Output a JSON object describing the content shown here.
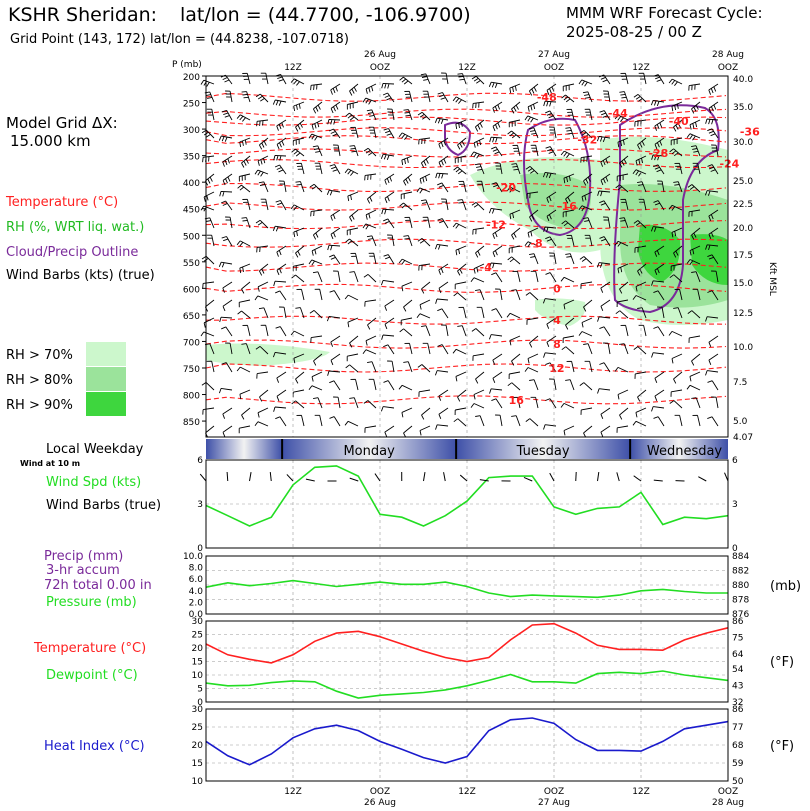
{
  "header": {
    "station": "KSHR Sheridan:",
    "latlon": "lat/lon = (44.7700, -106.9700)",
    "grid_point": "Grid Point (143, 172) lat/lon = (44.8238, -107.0718)",
    "forecast_title": "MMM WRF Forecast Cycle:",
    "forecast_cycle": "2025-08-25 / 00  Z"
  },
  "colors": {
    "temperature": "#ff2020",
    "rh": "#22bb22",
    "cloud": "#7a2a9a",
    "wind_spd": "#22dd22",
    "precip": "#7a2a9a",
    "pressure": "#22dd22",
    "dewpoint": "#22dd22",
    "heat_index": "#1a1acc",
    "rh70": "#ccf7cc",
    "rh80": "#9be39b",
    "rh90": "#3ed63e"
  },
  "legend": {
    "model_grid": "Model Grid ΔX:",
    "model_dx": "15.000 km",
    "temperature": "Temperature (°C)",
    "rh": "RH (%, WRT liq. wat.)",
    "cloud": "Cloud/Precip Outline",
    "wind_barbs": "Wind Barbs (kts) (true)",
    "rh70": "RH > 70%",
    "rh80": "RH > 80%",
    "rh90": "RH > 90%",
    "local_weekday": "Local Weekday",
    "wind_at": "Wind at 10 m",
    "wind_spd": "Wind Spd (kts)",
    "wind_barbs2": "Wind Barbs (true)",
    "precip1": "Precip (mm)",
    "precip2": "3-hr accum",
    "precip3": "72h total 0.00 in",
    "pressure": "Pressure (mb)",
    "temperature2": "Temperature (°C)",
    "dewpoint": "Dewpoint (°C)",
    "heat_index": "Heat Index (°C)",
    "mb_unit": "(mb)",
    "f_unit1": "(°F)",
    "f_unit2": "(°F)",
    "kft_msl": "Kft MSL",
    "p_mb": "P (mb)"
  },
  "days": [
    "Monday",
    "Tuesday",
    "Wednesday"
  ],
  "time_axis": {
    "top_labels": [
      {
        "main": "12Z",
        "sub": ""
      },
      {
        "main": "OOZ",
        "sub": "26 Aug"
      },
      {
        "main": "12Z",
        "sub": ""
      },
      {
        "main": "OOZ",
        "sub": "27 Aug"
      },
      {
        "main": "12Z",
        "sub": ""
      },
      {
        "main": "OOZ",
        "sub": "28 Aug"
      }
    ],
    "bottom_labels": [
      {
        "main": "12Z",
        "sub": ""
      },
      {
        "main": "OOZ",
        "sub": "26 Aug"
      },
      {
        "main": "12Z",
        "sub": ""
      },
      {
        "main": "OOZ",
        "sub": "27 Aug"
      },
      {
        "main": "12Z",
        "sub": ""
      },
      {
        "main": "OOZ",
        "sub": "28 Aug"
      }
    ]
  },
  "chart_data": [
    {
      "type": "heatmap",
      "name": "cross-section",
      "x_hours": [
        0,
        72
      ],
      "pressure_ticks": [
        200,
        250,
        300,
        350,
        400,
        450,
        500,
        550,
        600,
        650,
        700,
        750,
        800,
        850
      ],
      "height_ticks": [
        "40.0",
        "35.0",
        "30.0",
        "25.0",
        "22.5",
        "20.0",
        "17.5",
        "15.0",
        "12.5",
        "10.0",
        "7.5",
        "5.0",
        "4.07"
      ],
      "temperature_contours": [
        {
          "label": "-48",
          "p": 240,
          "t": 30
        },
        {
          "label": "-44",
          "p": 270,
          "t": 37
        },
        {
          "label": "-40",
          "p": 285,
          "t": 43
        },
        {
          "label": "-36",
          "p": 305,
          "t": 50
        },
        {
          "label": "-32",
          "p": 320,
          "t": 34
        },
        {
          "label": "-28",
          "p": 345,
          "t": 41
        },
        {
          "label": "-24",
          "p": 365,
          "t": 48
        },
        {
          "label": "-20",
          "p": 410,
          "t": 26
        },
        {
          "label": "-16",
          "p": 445,
          "t": 32
        },
        {
          "label": "-12",
          "p": 480,
          "t": 25
        },
        {
          "label": "-8",
          "p": 515,
          "t": 29
        },
        {
          "label": "-4",
          "p": 560,
          "t": 24
        },
        {
          "label": "0",
          "p": 600,
          "t": 31
        },
        {
          "label": "4",
          "p": 660,
          "t": 31
        },
        {
          "label": "8",
          "p": 705,
          "t": 31
        },
        {
          "label": "12",
          "p": 750,
          "t": 31
        },
        {
          "label": "16",
          "p": 810,
          "t": 27
        }
      ]
    },
    {
      "type": "line",
      "name": "wind",
      "x_hours": [
        0,
        3,
        6,
        9,
        12,
        15,
        18,
        21,
        24,
        27,
        30,
        33,
        36,
        39,
        42,
        45,
        48,
        51,
        54,
        57,
        60,
        63,
        66,
        69,
        72
      ],
      "series": [
        {
          "name": "Wind Spd (kts)",
          "values": [
            2.9,
            2.2,
            1.5,
            2.1,
            4.3,
            5.5,
            5.6,
            4.9,
            2.3,
            2.1,
            1.5,
            2.2,
            3.2,
            4.8,
            4.9,
            4.9,
            2.8,
            2.3,
            2.7,
            2.8,
            3.8,
            1.6,
            2.1,
            2.0,
            2.2
          ]
        }
      ],
      "ylim": [
        0,
        6
      ]
    },
    {
      "type": "line",
      "name": "pressure",
      "x_hours": [
        0,
        3,
        6,
        9,
        12,
        15,
        18,
        21,
        24,
        27,
        30,
        33,
        36,
        39,
        42,
        45,
        48,
        51,
        54,
        57,
        60,
        63,
        66,
        69,
        72
      ],
      "series": [
        {
          "name": "Pressure (mb)",
          "values": [
            879.7,
            880.3,
            879.9,
            880.2,
            880.6,
            880.2,
            879.8,
            880.1,
            880.4,
            880.1,
            880.1,
            880.4,
            879.8,
            878.9,
            878.4,
            878.6,
            878.5,
            878.4,
            878.3,
            878.6,
            879.2,
            879.4,
            879.1,
            878.9,
            878.9
          ]
        }
      ],
      "precip": [
        0,
        0,
        0,
        0,
        0,
        0,
        0,
        0,
        0,
        0,
        0,
        0,
        0,
        0,
        0,
        0,
        0,
        0,
        0,
        0,
        0,
        0,
        0,
        0,
        0
      ],
      "ylim_pressure": [
        876,
        884
      ],
      "ylim_precip": [
        0,
        10
      ]
    },
    {
      "type": "line",
      "name": "temperature",
      "x_hours": [
        0,
        3,
        6,
        9,
        12,
        15,
        18,
        21,
        24,
        27,
        30,
        33,
        36,
        39,
        42,
        45,
        48,
        51,
        54,
        57,
        60,
        63,
        66,
        69,
        72
      ],
      "series": [
        {
          "name": "Temperature (°C)",
          "values": [
            21.5,
            17.5,
            15.8,
            14.5,
            17.5,
            22.5,
            25.5,
            26.2,
            24.2,
            21.5,
            18.8,
            16.5,
            15.0,
            16.5,
            23.0,
            28.5,
            29.0,
            25.5,
            21.0,
            19.5,
            19.5,
            19.2,
            23.0,
            25.5,
            27.5
          ]
        },
        {
          "name": "Dewpoint (°C)",
          "values": [
            7.0,
            6.0,
            6.2,
            7.2,
            7.8,
            7.5,
            4.0,
            1.5,
            2.5,
            3.0,
            3.5,
            4.5,
            6.0,
            8.0,
            10.2,
            7.5,
            7.5,
            7.0,
            10.5,
            11.0,
            10.5,
            11.5,
            10.0,
            9.0,
            8.0
          ]
        }
      ],
      "ylim_c": [
        0,
        30
      ],
      "ticks_f": [
        32,
        43,
        54,
        64,
        75,
        86
      ]
    },
    {
      "type": "line",
      "name": "heat-index",
      "x_hours": [
        0,
        3,
        6,
        9,
        12,
        15,
        18,
        21,
        24,
        27,
        30,
        33,
        36,
        39,
        42,
        45,
        48,
        51,
        54,
        57,
        60,
        63,
        66,
        69,
        72
      ],
      "series": [
        {
          "name": "Heat Index (°C)",
          "values": [
            21.0,
            17.0,
            14.5,
            17.5,
            22.0,
            24.5,
            25.5,
            24.0,
            21.0,
            18.8,
            16.5,
            15.0,
            16.8,
            24.0,
            27.0,
            27.5,
            26.0,
            21.5,
            18.5,
            18.5,
            18.3,
            21.0,
            24.5,
            25.5,
            26.5
          ]
        }
      ],
      "ylim_c": [
        10,
        30
      ],
      "ticks_f": [
        50,
        59,
        68,
        77,
        86
      ]
    }
  ]
}
